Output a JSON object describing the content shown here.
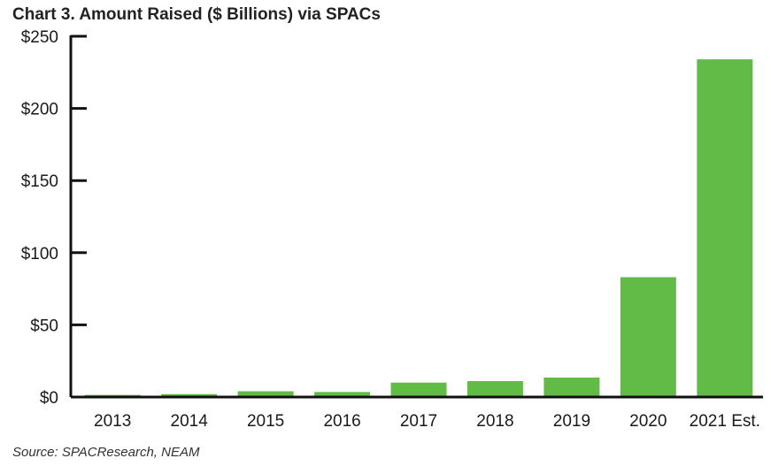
{
  "title": "Chart 3. Amount Raised ($ Billions) via SPACs",
  "source": "Source: SPACResearch, NEAM",
  "colors": {
    "bar": "#62bb46",
    "axis": "#111111"
  },
  "chart_data": {
    "type": "bar",
    "title": "Chart 3. Amount Raised ($ Billions) via SPACs",
    "categories": [
      "2013",
      "2014",
      "2015",
      "2016",
      "2017",
      "2018",
      "2019",
      "2020",
      "2021 Est."
    ],
    "values": [
      1.5,
      2,
      4,
      3.5,
      10,
      11,
      13.5,
      83,
      234
    ],
    "ylim": [
      0,
      250
    ],
    "yticks": [
      0,
      50,
      100,
      150,
      200,
      250
    ],
    "ytick_labels": [
      "$0",
      "$50",
      "$100",
      "$150",
      "$200",
      "$250"
    ],
    "xlabel": "",
    "ylabel": "",
    "grid": false,
    "legend": "none"
  }
}
